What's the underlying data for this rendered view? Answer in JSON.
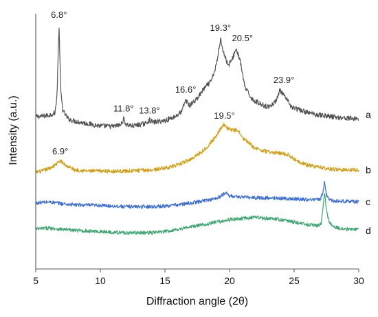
{
  "chart_data": {
    "type": "line",
    "xlabel": "Diffraction angle (2θ)",
    "ylabel": "Intensity (a.u.)",
    "xlim": [
      5,
      30
    ],
    "xticks": [
      5,
      10,
      15,
      20,
      25,
      30
    ],
    "grid": false,
    "y_offset_stacked": true,
    "series": [
      {
        "name": "a",
        "color": "#555555",
        "baseline": 2.0,
        "noise": 0.042,
        "label_at": 2.05,
        "points": [
          [
            5,
            2.02
          ],
          [
            5.5,
            2.02
          ],
          [
            6,
            2.04
          ],
          [
            6.5,
            2.08
          ],
          [
            6.65,
            2.4
          ],
          [
            6.8,
            3.55
          ],
          [
            6.95,
            2.4
          ],
          [
            7.1,
            2.12
          ],
          [
            7.5,
            1.98
          ],
          [
            8,
            1.94
          ],
          [
            9,
            1.9
          ],
          [
            10,
            1.86
          ],
          [
            11,
            1.85
          ],
          [
            11.6,
            1.88
          ],
          [
            11.8,
            1.98
          ],
          [
            12,
            1.88
          ],
          [
            12.5,
            1.86
          ],
          [
            13.5,
            1.9
          ],
          [
            13.8,
            1.96
          ],
          [
            14.1,
            1.92
          ],
          [
            15,
            1.95
          ],
          [
            15.8,
            2.02
          ],
          [
            16.3,
            2.1
          ],
          [
            16.6,
            2.3
          ],
          [
            16.9,
            2.2
          ],
          [
            17.5,
            2.32
          ],
          [
            18,
            2.48
          ],
          [
            18.6,
            2.62
          ],
          [
            19,
            2.9
          ],
          [
            19.3,
            3.33
          ],
          [
            19.6,
            3.05
          ],
          [
            19.9,
            2.88
          ],
          [
            20.2,
            2.98
          ],
          [
            20.5,
            3.16
          ],
          [
            20.8,
            2.98
          ],
          [
            21.2,
            2.5
          ],
          [
            21.8,
            2.3
          ],
          [
            22.5,
            2.22
          ],
          [
            23,
            2.18
          ],
          [
            23.5,
            2.25
          ],
          [
            23.9,
            2.46
          ],
          [
            24.3,
            2.34
          ],
          [
            24.8,
            2.18
          ],
          [
            25.5,
            2.12
          ],
          [
            26.5,
            2.06
          ],
          [
            27.5,
            2.03
          ],
          [
            28.5,
            2.0
          ],
          [
            30,
            1.98
          ]
        ]
      },
      {
        "name": "b",
        "color": "#d4a017",
        "baseline": 1.1,
        "noise": 0.032,
        "label_at": 1.12,
        "points": [
          [
            5,
            1.08
          ],
          [
            5.5,
            1.1
          ],
          [
            6,
            1.14
          ],
          [
            6.5,
            1.2
          ],
          [
            6.9,
            1.27
          ],
          [
            7.3,
            1.2
          ],
          [
            8,
            1.12
          ],
          [
            9,
            1.1
          ],
          [
            10,
            1.1
          ],
          [
            12,
            1.1
          ],
          [
            14,
            1.12
          ],
          [
            15,
            1.15
          ],
          [
            16,
            1.2
          ],
          [
            17,
            1.3
          ],
          [
            18,
            1.45
          ],
          [
            18.8,
            1.64
          ],
          [
            19.2,
            1.78
          ],
          [
            19.5,
            1.88
          ],
          [
            19.9,
            1.82
          ],
          [
            20.3,
            1.78
          ],
          [
            20.6,
            1.8
          ],
          [
            21,
            1.66
          ],
          [
            22,
            1.48
          ],
          [
            23,
            1.42
          ],
          [
            24,
            1.4
          ],
          [
            24.6,
            1.37
          ],
          [
            25,
            1.3
          ],
          [
            26,
            1.2
          ],
          [
            27,
            1.16
          ],
          [
            28,
            1.13
          ],
          [
            29,
            1.12
          ],
          [
            30,
            1.12
          ]
        ]
      },
      {
        "name": "c",
        "color": "#3a6fd8",
        "baseline": 0.5,
        "noise": 0.03,
        "label_at": 0.58,
        "points": [
          [
            5,
            0.56
          ],
          [
            6,
            0.58
          ],
          [
            7,
            0.55
          ],
          [
            8,
            0.53
          ],
          [
            10,
            0.52
          ],
          [
            12,
            0.5
          ],
          [
            14,
            0.5
          ],
          [
            15,
            0.51
          ],
          [
            16,
            0.53
          ],
          [
            17,
            0.56
          ],
          [
            18,
            0.6
          ],
          [
            19,
            0.64
          ],
          [
            19.5,
            0.7
          ],
          [
            19.7,
            0.74
          ],
          [
            20,
            0.68
          ],
          [
            21,
            0.66
          ],
          [
            22,
            0.65
          ],
          [
            24,
            0.64
          ],
          [
            26,
            0.62
          ],
          [
            27,
            0.62
          ],
          [
            27.2,
            0.72
          ],
          [
            27.35,
            0.93
          ],
          [
            27.5,
            0.7
          ],
          [
            27.7,
            0.62
          ],
          [
            28,
            0.6
          ],
          [
            29,
            0.59
          ],
          [
            30,
            0.58
          ]
        ]
      },
      {
        "name": "d",
        "color": "#3aa86e",
        "baseline": 0.0,
        "noise": 0.03,
        "label_at": 0.1,
        "points": [
          [
            5,
            0.12
          ],
          [
            6,
            0.14
          ],
          [
            7,
            0.12
          ],
          [
            8,
            0.1
          ],
          [
            10,
            0.08
          ],
          [
            12,
            0.06
          ],
          [
            14,
            0.06
          ],
          [
            15,
            0.08
          ],
          [
            16,
            0.12
          ],
          [
            17,
            0.16
          ],
          [
            18,
            0.2
          ],
          [
            19,
            0.24
          ],
          [
            20,
            0.28
          ],
          [
            21,
            0.3
          ],
          [
            22,
            0.32
          ],
          [
            23,
            0.3
          ],
          [
            24,
            0.28
          ],
          [
            25,
            0.24
          ],
          [
            26,
            0.2
          ],
          [
            26.8,
            0.18
          ],
          [
            27.1,
            0.22
          ],
          [
            27.25,
            0.5
          ],
          [
            27.35,
            0.74
          ],
          [
            27.5,
            0.44
          ],
          [
            27.7,
            0.24
          ],
          [
            28,
            0.16
          ],
          [
            29,
            0.12
          ],
          [
            30,
            0.12
          ]
        ]
      }
    ],
    "annotations": [
      {
        "text": "6.8°",
        "x": 6.8,
        "y": 3.68
      },
      {
        "text": "11.8°",
        "x": 11.8,
        "y": 2.1
      },
      {
        "text": "13.8°",
        "x": 13.8,
        "y": 2.07
      },
      {
        "text": "16.6°",
        "x": 16.6,
        "y": 2.42
      },
      {
        "text": "19.3°",
        "x": 19.3,
        "y": 3.46
      },
      {
        "text": "20.5°",
        "x": 21.0,
        "y": 3.29
      },
      {
        "text": "23.9°",
        "x": 24.2,
        "y": 2.58
      },
      {
        "text": "19.5°",
        "x": 19.6,
        "y": 1.98
      },
      {
        "text": "6.9°",
        "x": 6.9,
        "y": 1.38
      }
    ]
  }
}
